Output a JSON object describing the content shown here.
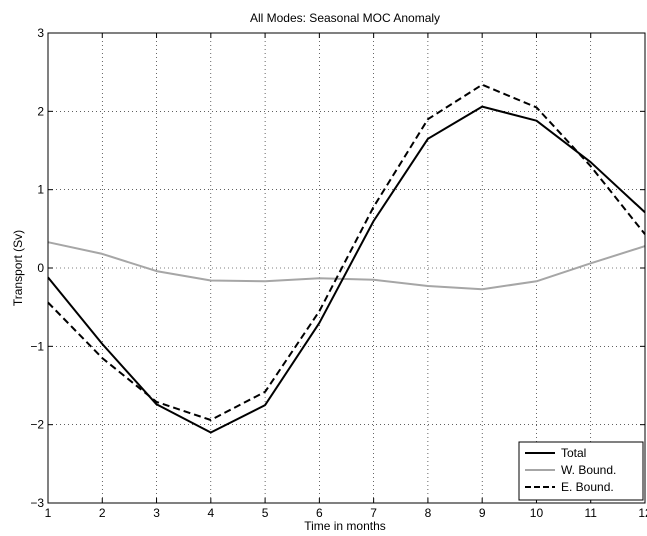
{
  "chart_data": {
    "type": "line",
    "title": "All Modes: Seasonal MOC Anomaly",
    "xlabel": "Time in months",
    "ylabel": "Transport (Sv)",
    "xlim": [
      1,
      12
    ],
    "ylim": [
      -3,
      3
    ],
    "xticks": [
      "1",
      "2",
      "3",
      "4",
      "5",
      "6",
      "7",
      "8",
      "9",
      "10",
      "11",
      "12"
    ],
    "yticks": [
      "−3",
      "−2",
      "−1",
      "0",
      "1",
      "2",
      "3"
    ],
    "grid": true,
    "legend_position": "bottom-right",
    "x": [
      1,
      2,
      3,
      4,
      5,
      6,
      7,
      8,
      9,
      10,
      11,
      12
    ],
    "series": [
      {
        "name": "Total",
        "color": "#000000",
        "style": "solid",
        "values": [
          -0.12,
          -0.97,
          -1.74,
          -2.1,
          -1.75,
          -0.7,
          0.6,
          1.65,
          2.06,
          1.88,
          1.35,
          0.71
        ]
      },
      {
        "name": "W. Bound.",
        "color": "#a6a6a6",
        "style": "solid",
        "values": [
          0.33,
          0.18,
          -0.04,
          -0.16,
          -0.17,
          -0.13,
          -0.15,
          -0.23,
          -0.27,
          -0.17,
          0.06,
          0.28
        ]
      },
      {
        "name": "E. Bound.",
        "color": "#000000",
        "style": "dashed",
        "values": [
          -0.44,
          -1.15,
          -1.71,
          -1.94,
          -1.58,
          -0.55,
          0.78,
          1.9,
          2.34,
          2.05,
          1.3,
          0.43
        ]
      }
    ]
  }
}
